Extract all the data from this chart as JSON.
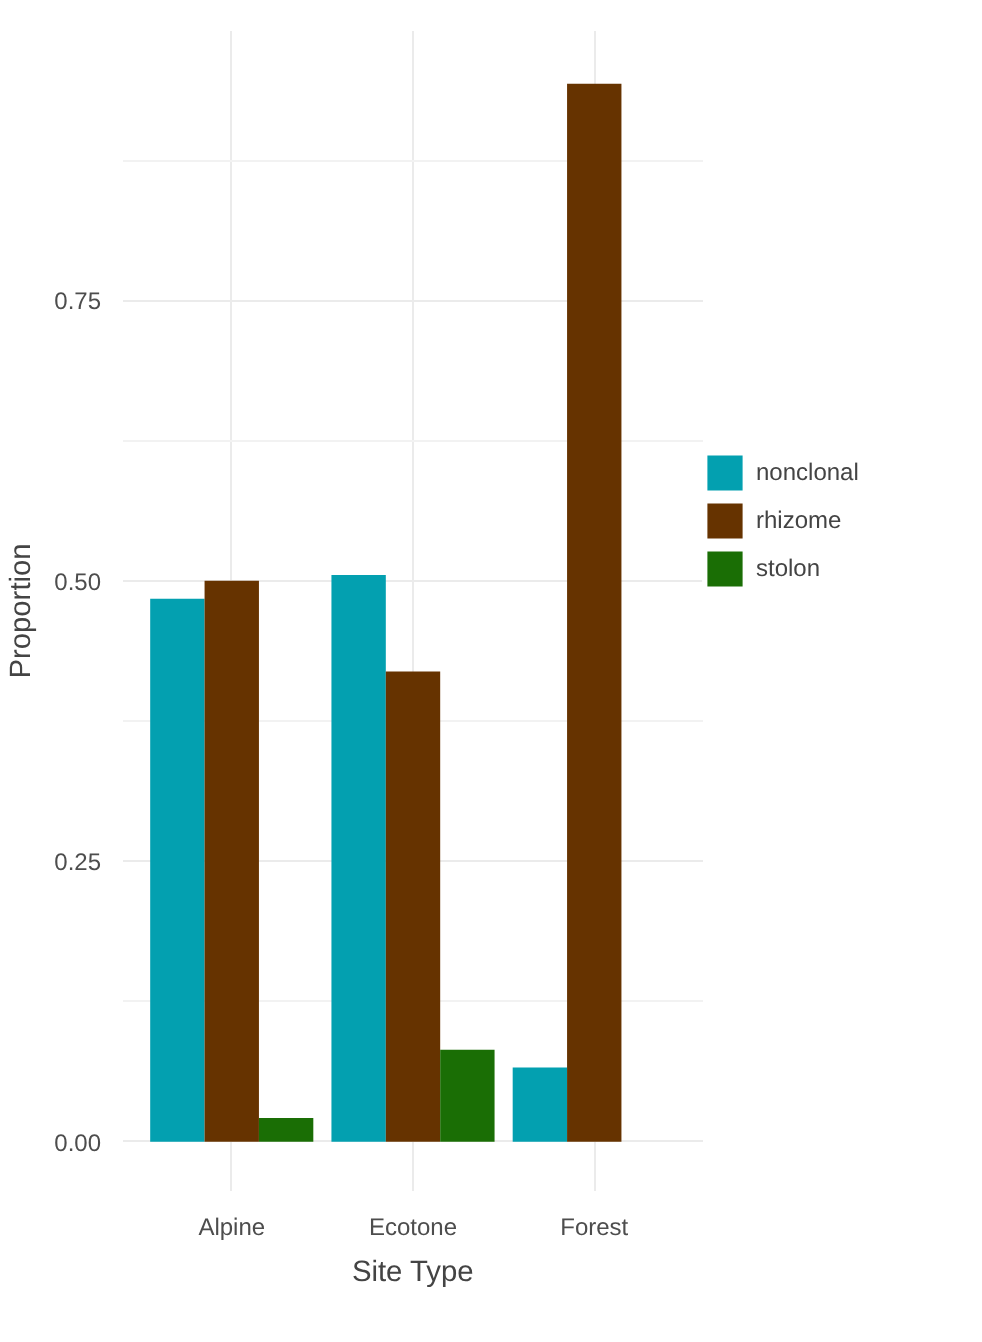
{
  "chart_data": {
    "type": "bar",
    "xlabel": "Site Type",
    "ylabel": "Proportion",
    "categories": [
      "Alpine",
      "Ecotone",
      "Forest"
    ],
    "series": [
      {
        "name": "nonclonal",
        "color": "#03a0b0",
        "values": [
          0.484,
          0.505,
          0.066
        ]
      },
      {
        "name": "rhizome",
        "color": "#663300",
        "values": [
          0.5,
          0.419,
          0.943
        ]
      },
      {
        "name": "stolon",
        "color": "#1a6e05",
        "values": [
          0.021,
          0.082,
          null
        ]
      }
    ],
    "ylim": [
      -0.044,
      0.99
    ],
    "yticks": [
      {
        "value": 0,
        "label": "0.00"
      },
      0.25,
      {
        "value": 0.5,
        "label": "0.50"
      },
      0.75
    ],
    "grid": true,
    "legend": "right"
  }
}
